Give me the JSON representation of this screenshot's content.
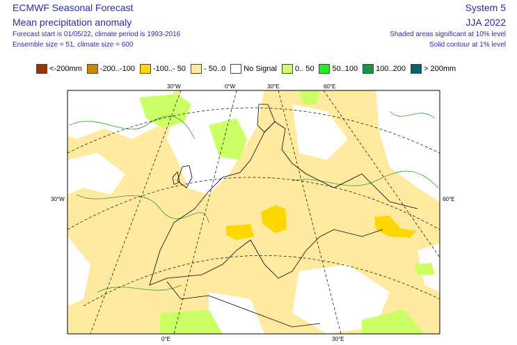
{
  "header": {
    "title": "ECMWF Seasonal Forecast",
    "subtitle": "Mean precipitation anomaly",
    "line3": "Forecast start is 01/05/22, climate period is 1993-2016",
    "line4": "Ensemble size = 51, climate size = 600",
    "system": "System 5",
    "period": "JJA 2022",
    "sig1": "Shaded areas significant at 10% level",
    "sig2": "Solid contour at 1% level"
  },
  "legend": [
    {
      "label": "<-200mm",
      "color": "#993300"
    },
    {
      "label": "-200..-100",
      "color": "#cc8800"
    },
    {
      "label": "-100..- 50",
      "color": "#ffd700"
    },
    {
      "label": "- 50..0",
      "color": "#ffeaa0"
    },
    {
      "label": "No Signal",
      "color": "#ffffff"
    },
    {
      "label": "0.. 50",
      "color": "#ccff66"
    },
    {
      "label": "50..100",
      "color": "#22ee22"
    },
    {
      "label": "100..200",
      "color": "#119944"
    },
    {
      "label": "> 200mm",
      "color": "#006666"
    }
  ],
  "gridlabels": {
    "top": [
      "30°W",
      "0°W",
      "30°E",
      "60°E"
    ],
    "left": "30°W",
    "right": "60°E",
    "bottom": [
      "0°E",
      "30°E"
    ]
  }
}
